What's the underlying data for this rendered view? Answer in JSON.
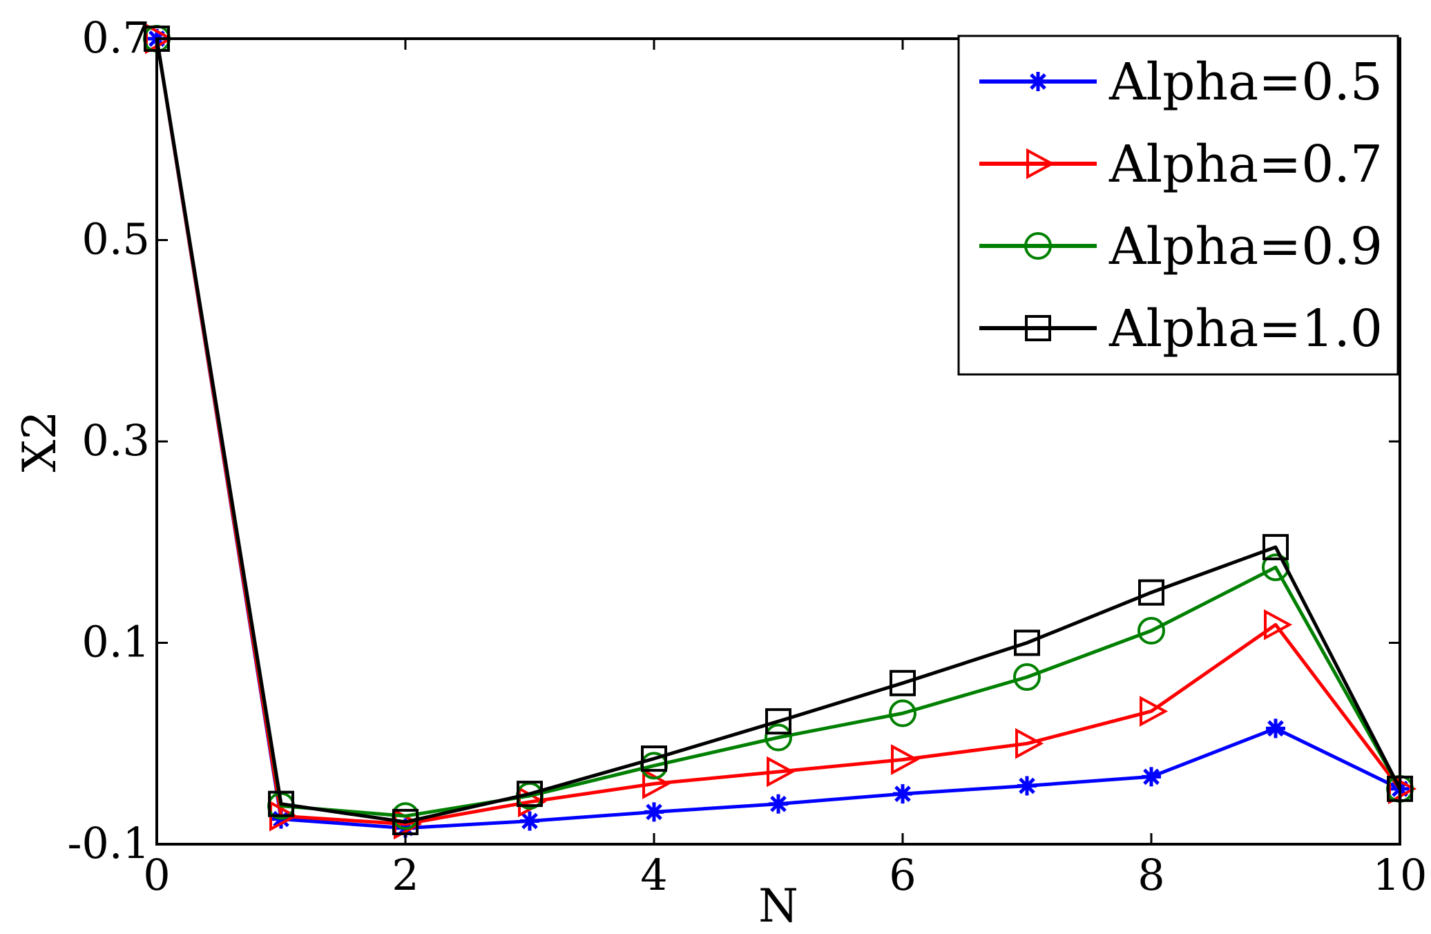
{
  "chart_data": {
    "type": "line",
    "title": "",
    "xlabel": "N",
    "ylabel": "X2",
    "xlim": [
      0,
      10
    ],
    "ylim": [
      -0.1,
      0.7
    ],
    "x_ticks": [
      0,
      2,
      4,
      6,
      8,
      10
    ],
    "x_tick_labels": [
      "0",
      "2",
      "4",
      "6",
      "8",
      "10"
    ],
    "y_ticks": [
      -0.1,
      0.1,
      0.3,
      0.5,
      0.7
    ],
    "y_tick_labels": [
      "-0.1",
      "0.1",
      "0.3",
      "0.5",
      "0.7"
    ],
    "grid": false,
    "legend_position": "top-right",
    "x": [
      0,
      1,
      2,
      3,
      4,
      5,
      6,
      7,
      8,
      9,
      10
    ],
    "series": [
      {
        "name": "Alpha=0.5",
        "color": "#0000ff",
        "marker": "asterisk",
        "values": [
          0.7,
          -0.075,
          -0.084,
          -0.077,
          -0.068,
          -0.06,
          -0.05,
          -0.042,
          -0.033,
          0.015,
          -0.045
        ]
      },
      {
        "name": "Alpha=0.7",
        "color": "#ff0000",
        "marker": "triangle-right",
        "values": [
          0.7,
          -0.072,
          -0.08,
          -0.058,
          -0.04,
          -0.028,
          -0.016,
          0.0,
          0.032,
          0.118,
          -0.045
        ]
      },
      {
        "name": "Alpha=0.9",
        "color": "#008000",
        "marker": "circle",
        "values": [
          0.7,
          -0.062,
          -0.072,
          -0.052,
          -0.022,
          0.006,
          0.03,
          0.066,
          0.112,
          0.175,
          -0.045
        ]
      },
      {
        "name": "Alpha=1.0",
        "color": "#000000",
        "marker": "square",
        "values": [
          0.7,
          -0.06,
          -0.078,
          -0.05,
          -0.015,
          0.022,
          0.06,
          0.1,
          0.15,
          0.195,
          -0.045
        ]
      }
    ]
  }
}
